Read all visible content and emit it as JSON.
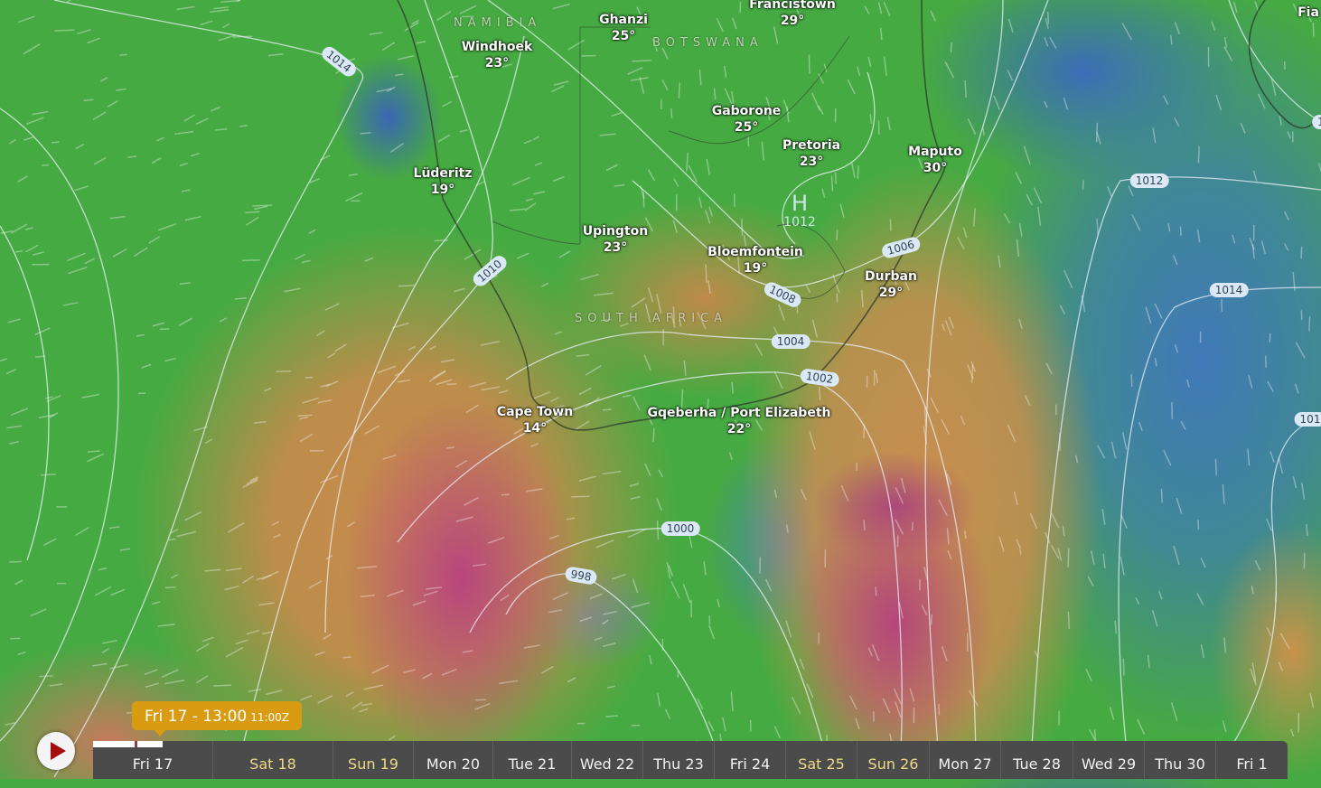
{
  "map": {
    "countries": [
      "NAMIBIA",
      "BOTSWANA",
      "SOUTH AFRICA"
    ],
    "cities": [
      {
        "name": "Francistown",
        "temp": "29°"
      },
      {
        "name": "Ghanzi",
        "temp": "25°"
      },
      {
        "name": "Windhoek",
        "temp": "23°"
      },
      {
        "name": "Gaborone",
        "temp": "25°"
      },
      {
        "name": "Pretoria",
        "temp": "23°"
      },
      {
        "name": "Maputo",
        "temp": "30°"
      },
      {
        "name": "Lüderitz",
        "temp": "19°"
      },
      {
        "name": "Upington",
        "temp": "23°"
      },
      {
        "name": "Bloemfontein",
        "temp": "19°"
      },
      {
        "name": "Durban",
        "temp": "29°"
      },
      {
        "name": "Cape Town",
        "temp": "14°"
      },
      {
        "name": "Gqeberha / Port Elizabeth",
        "temp": "22°"
      },
      {
        "name": "Fia",
        "temp": ""
      }
    ],
    "high": {
      "symbol": "H",
      "pressure": "1012"
    },
    "isobar_labels": [
      "1014",
      "1012",
      "1010",
      "1008",
      "1006",
      "1014",
      "1004",
      "1002",
      "1000",
      "998",
      "101",
      "1"
    ],
    "colors": {
      "green": "#46aa42",
      "orange": "#c98a4c",
      "magenta": "#b8457e",
      "blue": "#3f79b8"
    }
  },
  "timeline": {
    "tooltip": {
      "local": "Fri 17 - 13:00",
      "utc": "11:00Z"
    },
    "play_icon": "play-icon",
    "days": [
      {
        "label": "Fri 17",
        "weekend": false
      },
      {
        "label": "Sat 18",
        "weekend": true
      },
      {
        "label": "Sun 19",
        "weekend": true
      },
      {
        "label": "Mon 20",
        "weekend": false
      },
      {
        "label": "Tue 21",
        "weekend": false
      },
      {
        "label": "Wed 22",
        "weekend": false
      },
      {
        "label": "Thu 23",
        "weekend": false
      },
      {
        "label": "Fri 24",
        "weekend": false
      },
      {
        "label": "Sat 25",
        "weekend": true
      },
      {
        "label": "Sun 26",
        "weekend": true
      },
      {
        "label": "Mon 27",
        "weekend": false
      },
      {
        "label": "Tue 28",
        "weekend": false
      },
      {
        "label": "Wed 29",
        "weekend": false
      },
      {
        "label": "Thu 30",
        "weekend": false
      },
      {
        "label": "Fri 1",
        "weekend": false
      }
    ],
    "progress_percent": 5.8,
    "accent": "#d89b12"
  }
}
